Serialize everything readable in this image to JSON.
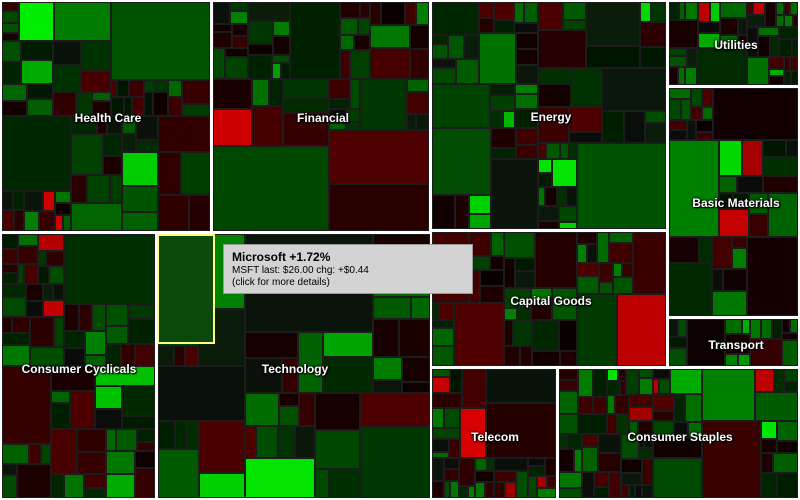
{
  "chart_data": {
    "type": "treemap",
    "sectors": [
      {
        "name": "Health Care"
      },
      {
        "name": "Financial"
      },
      {
        "name": "Energy"
      },
      {
        "name": "Utilities"
      },
      {
        "name": "Basic Materials"
      },
      {
        "name": "Consumer Cyclicals"
      },
      {
        "name": "Technology"
      },
      {
        "name": "Capital Goods"
      },
      {
        "name": "Transport"
      },
      {
        "name": "Telecom"
      },
      {
        "name": "Consumer Staples"
      }
    ]
  },
  "tooltip": {
    "title": "Microsoft +1.72%",
    "line1": "MSFT last: $26.00 chg: +$0.44",
    "line2": "(click for more details)"
  },
  "colors": {
    "border": "#ffffff",
    "positive": "#00aa00",
    "negative": "#aa0000",
    "neutral": "#0a0a0a",
    "highlight": "#ffff88"
  }
}
